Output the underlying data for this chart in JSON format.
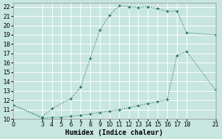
{
  "xlabel": "Humidex (Indice chaleur)",
  "xlim": [
    0,
    21
  ],
  "ylim": [
    10,
    22.4
  ],
  "xticks": [
    0,
    3,
    4,
    5,
    6,
    7,
    8,
    9,
    10,
    11,
    12,
    13,
    14,
    15,
    16,
    17,
    18,
    21
  ],
  "yticks": [
    10,
    11,
    12,
    13,
    14,
    15,
    16,
    17,
    18,
    19,
    20,
    21,
    22
  ],
  "background_color": "#c8e6e0",
  "grid_color": "#ffffff",
  "line_color": "#1a6b5a",
  "line1_x": [
    0,
    3,
    4,
    6,
    7,
    8,
    9,
    10,
    11,
    12,
    13,
    14,
    15,
    16,
    17,
    18,
    21
  ],
  "line1_y": [
    11.5,
    10.2,
    11.1,
    12.2,
    13.4,
    16.5,
    19.5,
    21.1,
    22.1,
    22.0,
    21.9,
    22.0,
    21.8,
    21.5,
    21.55,
    19.2,
    19.0
  ],
  "line2_x": [
    0,
    3,
    4,
    5,
    6,
    7,
    8,
    9,
    10,
    11,
    12,
    13,
    14,
    15,
    16,
    17,
    18,
    21
  ],
  "line2_y": [
    11.5,
    10.1,
    10.15,
    10.2,
    10.3,
    10.4,
    10.55,
    10.7,
    10.85,
    11.0,
    11.2,
    11.45,
    11.65,
    11.85,
    12.1,
    16.8,
    17.2,
    13.1
  ],
  "font_size_label": 7,
  "font_size_tick": 6
}
